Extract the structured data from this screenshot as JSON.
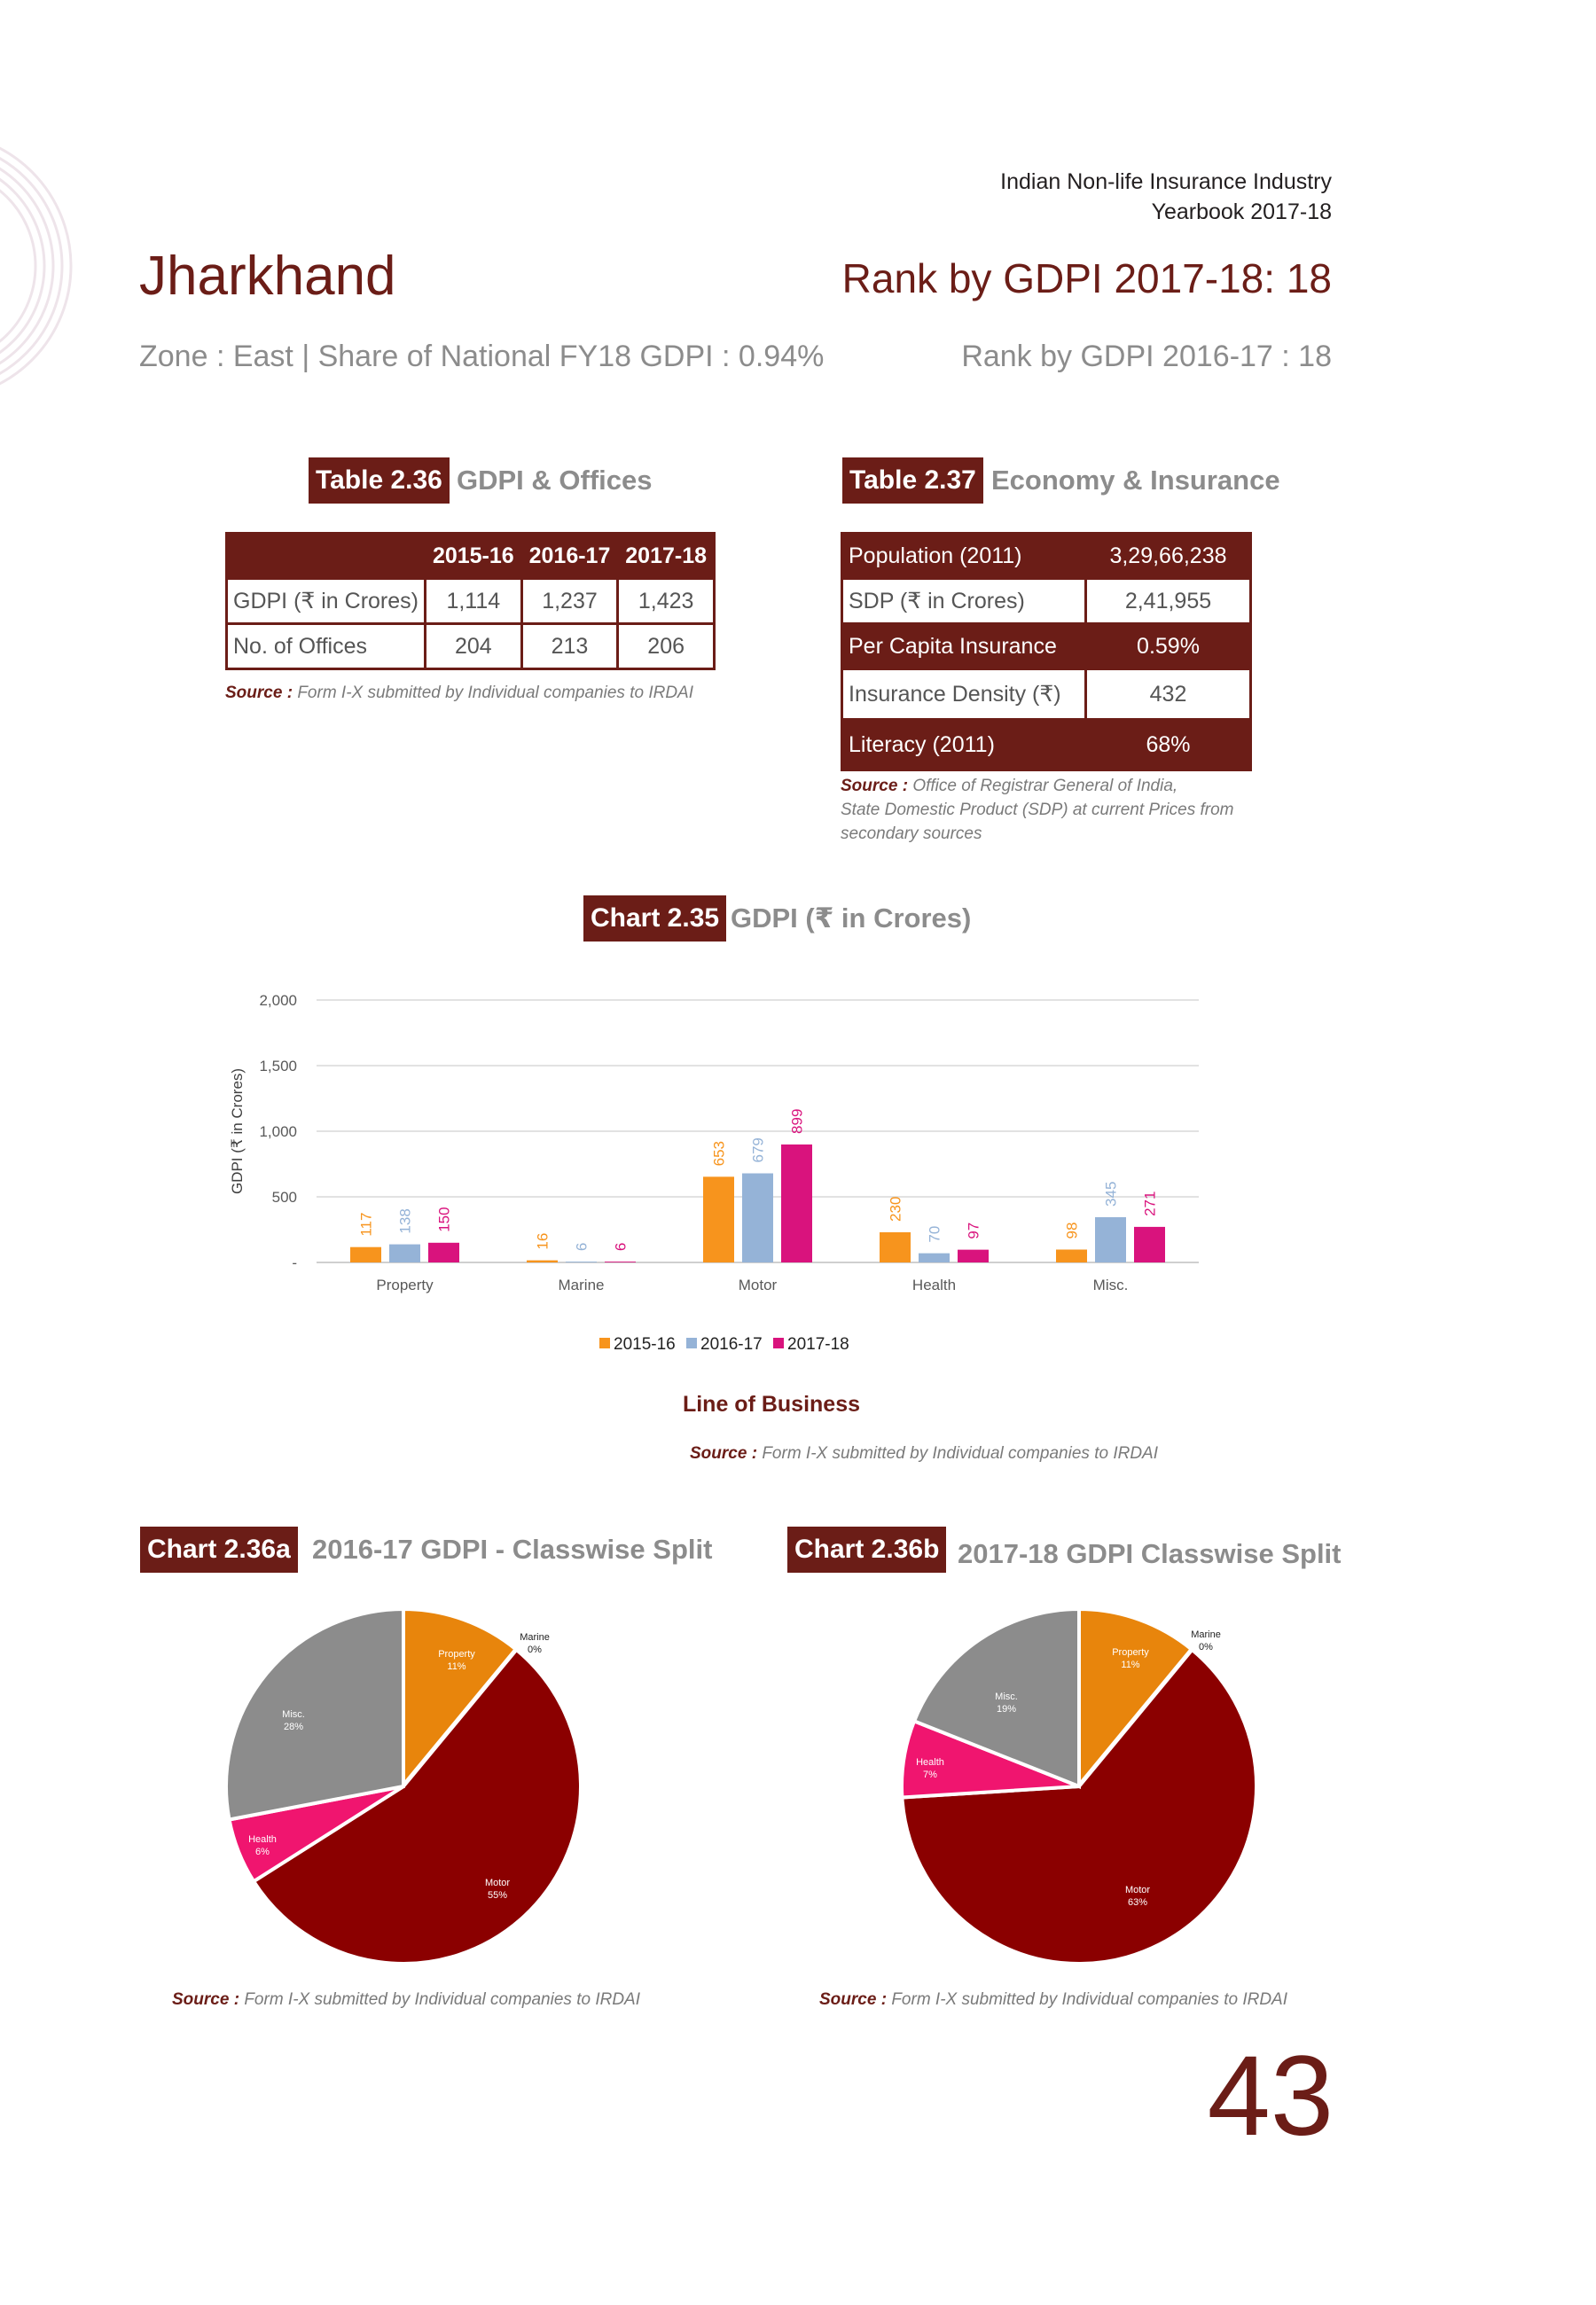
{
  "header": {
    "line1": "Indian Non-life Insurance Industry",
    "line2": "Yearbook 2017-18"
  },
  "state": {
    "name": "Jharkhand",
    "rank_current": "Rank by GDPI 2017-18: 18",
    "zone_line": "Zone : East | Share of National FY18 GDPI : 0.94%",
    "rank_previous": "Rank by GDPI 2016-17 : 18"
  },
  "table_236": {
    "tag": "Table 2.36",
    "title": "GDPI & Offices",
    "years": [
      "2015-16",
      "2016-17",
      "2017-18"
    ],
    "rows": [
      {
        "label": "GDPI (₹ in Crores)",
        "values": [
          "1,114",
          "1,237",
          "1,423"
        ]
      },
      {
        "label": "No. of Offices",
        "values": [
          "204",
          "213",
          "206"
        ]
      }
    ],
    "source_label": "Source :",
    "source_text": "Form I-X submitted by Individual companies to IRDAI"
  },
  "table_237": {
    "tag": "Table 2.37",
    "title": "Economy & Insurance",
    "rows": [
      {
        "label": "Population (2011)",
        "value": "3,29,66,238"
      },
      {
        "label": "SDP (₹ in Crores)",
        "value": "2,41,955"
      },
      {
        "label": "Per Capita Insurance",
        "value": "0.59%"
      },
      {
        "label": "Insurance Density (₹)",
        "value": "432"
      },
      {
        "label": "Literacy (2011)",
        "value": "68%"
      }
    ],
    "source_label": "Source :",
    "source_line1": "Office of Registrar General of India,",
    "source_line2": "State Domestic Product (SDP) at current Prices from",
    "source_line3": "secondary sources"
  },
  "chart_235": {
    "tag": "Chart 2.35",
    "title": "GDPI (₹ in Crores)",
    "source_label": "Source :",
    "source_text": "Form I-X submitted by Individual companies to IRDAI"
  },
  "chart_236a": {
    "tag": "Chart 2.36a",
    "title": "2016-17 GDPI - Classwise Split",
    "source_label": "Source :",
    "source_text": "Form I-X submitted by Individual companies to IRDAI"
  },
  "chart_236b": {
    "tag": "Chart 2.36b",
    "title": "2017-18 GDPI Classwise Split",
    "source_label": "Source :",
    "source_text": "Form I-X submitted by Individual companies to IRDAI"
  },
  "page_number": "43",
  "colors": {
    "maroon": "#6b1d17",
    "orange": "#f7941d",
    "blue": "#95b3d7",
    "pink": "#d9137d",
    "pie_orange": "#e8850c",
    "pie_darkred": "#8b0000",
    "pie_pink": "#f0156f",
    "pie_grey": "#8c8c8c"
  },
  "chart_data": [
    {
      "type": "bar",
      "categories": [
        "Property",
        "Marine",
        "Motor",
        "Health",
        "Misc."
      ],
      "series": [
        {
          "name": "2015-16",
          "values": [
            117,
            16,
            653,
            230,
            98
          ]
        },
        {
          "name": "2016-17",
          "values": [
            138,
            6,
            679,
            70,
            345
          ]
        },
        {
          "name": "2017-18",
          "values": [
            150,
            6,
            899,
            97,
            271
          ]
        }
      ],
      "xlabel": "Line of Business",
      "ylabel": "GDPI (₹ in Crores)",
      "ylim": [
        0,
        2000
      ],
      "yticks": [
        "-",
        "500",
        "1,000",
        "1,500",
        "2,000"
      ],
      "legend": "bottom",
      "grid": true
    },
    {
      "type": "pie",
      "labels": [
        "Property",
        "Marine",
        "Motor",
        "Health",
        "Misc."
      ],
      "values": [
        11,
        0,
        55,
        6,
        28
      ],
      "value_labels": [
        "11%",
        "0%",
        "55%",
        "6%",
        "28%"
      ]
    },
    {
      "type": "pie",
      "labels": [
        "Property",
        "Marine",
        "Motor",
        "Health",
        "Misc."
      ],
      "values": [
        11,
        0,
        63,
        7,
        19
      ],
      "value_labels": [
        "11%",
        "0%",
        "63%",
        "7%",
        "19%"
      ]
    }
  ]
}
